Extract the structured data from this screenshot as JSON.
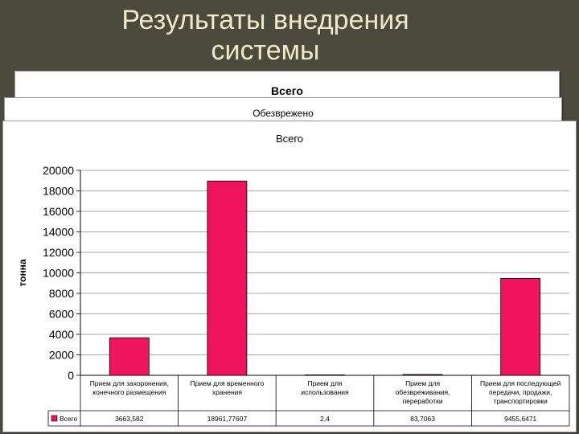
{
  "slide": {
    "title_line1": "Результаты внедрения",
    "title_line2": "системы"
  },
  "panels": {
    "back1_title": "Всего",
    "back2_title": "Обезврежено"
  },
  "colors": {
    "bar": "#f0135e",
    "background": "#4b4a3c",
    "title": "#efe9c8"
  },
  "chart_data": {
    "type": "bar",
    "title": "Всего",
    "ylabel": "тонна",
    "xlabel": "",
    "ylim": [
      0,
      20000
    ],
    "yticks": [
      0,
      2000,
      4000,
      6000,
      8000,
      10000,
      12000,
      14000,
      16000,
      18000,
      20000
    ],
    "grid": true,
    "categories": [
      [
        "Прием для захоронения,",
        "конечного размещения"
      ],
      [
        "Прием для временного",
        "хранения"
      ],
      [
        "Прием для",
        "использования"
      ],
      [
        "Прием для",
        "обезвреживания,",
        "переработки"
      ],
      [
        "Прием для последующей",
        "передачи, продажи,",
        "транспортировки"
      ]
    ],
    "series": [
      {
        "name": "Всего",
        "values": [
          3663.582,
          18961.77607,
          2.4,
          83.7063,
          9455.6471
        ],
        "value_labels": [
          "3663,582",
          "18961,77607",
          "2,4",
          "83,7063",
          "9455,6471"
        ]
      }
    ]
  }
}
